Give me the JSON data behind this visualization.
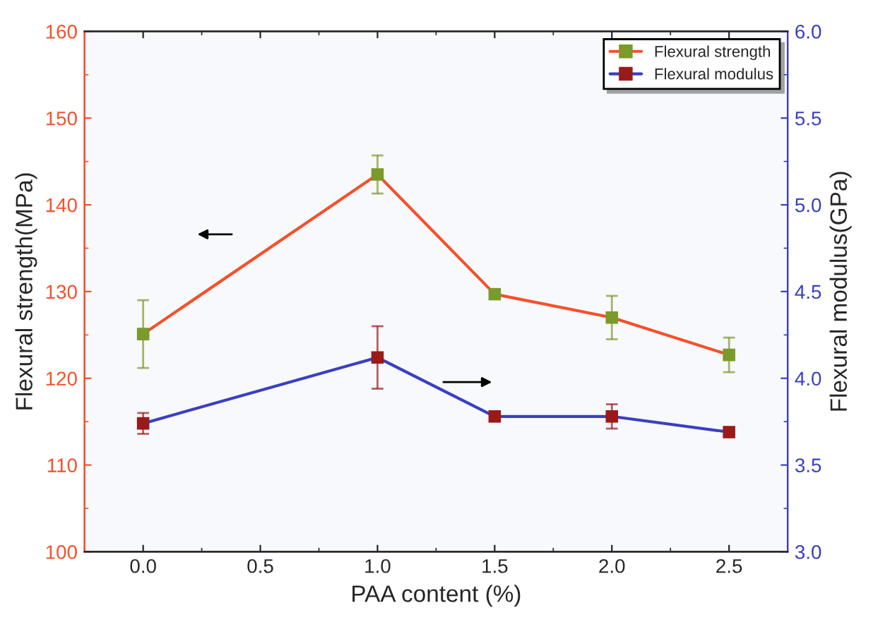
{
  "chart_data": {
    "type": "line",
    "xlabel": "PAA content (%)",
    "ylabel": "Flexural strength(MPa)",
    "y2label": "Flexural modulus(GPa)",
    "x": [
      0.0,
      1.0,
      1.5,
      2.0,
      2.5
    ],
    "xlim": [
      -0.25,
      2.75
    ],
    "xticks": [
      {
        "value": 0,
        "label": "0.0"
      },
      0.5,
      {
        "value": 1,
        "label": "1.0"
      },
      1.5,
      {
        "value": 2,
        "label": "2.0"
      },
      2.5
    ],
    "ylim": [
      100,
      160
    ],
    "yticks": [
      100,
      110,
      120,
      130,
      140,
      150,
      160
    ],
    "y2lim": [
      3.0,
      6.0
    ],
    "y2ticks": [
      {
        "value": 3,
        "label": "3.0"
      },
      3.5,
      {
        "value": 4,
        "label": "4.0"
      },
      4.5,
      {
        "value": 5,
        "label": "5.0"
      },
      5.5,
      {
        "value": 6,
        "label": "6.0"
      }
    ],
    "marker": "square",
    "line_style": "solid",
    "grid": false,
    "legend": "top right",
    "series": [
      {
        "name": "Flexural strength",
        "color": "#f5502a",
        "colors": [
          "#7a9a2a",
          "#7a9a2a",
          "#7a9a2a",
          "#7a9a2a",
          "#7a9a2a"
        ],
        "values": [
          125.1,
          143.5,
          129.7,
          127.0,
          122.7
        ],
        "errors": [
          3.9,
          2.2,
          null,
          2.5,
          2.0
        ]
      },
      {
        "name": "Flexural modulus",
        "color": "#3a3fc0",
        "colors": [
          "#9a1a1a",
          "#9a1a1a",
          "#9a1a1a",
          "#9a1a1a",
          "#9a1a1a"
        ],
        "values": [
          3.74,
          4.12,
          3.78,
          3.78,
          3.69
        ],
        "errors": [
          0.06,
          0.18,
          null,
          0.07,
          null
        ],
        "axis": "y2"
      }
    ]
  }
}
